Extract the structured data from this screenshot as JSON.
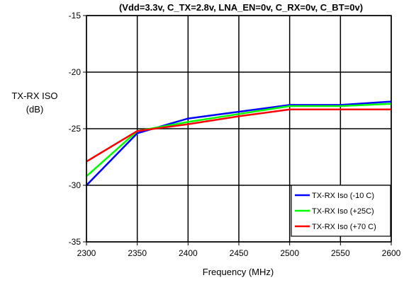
{
  "chart_data": {
    "type": "line",
    "title": "(Vdd=3.3v, C_TX=2.8v, LNA_EN=0v, C_RX=0v, C_BT=0v)",
    "xlabel": "Frequency (MHz)",
    "ylabel": [
      "TX-RX ISO",
      "(dB)"
    ],
    "xlim": [
      2300,
      2600
    ],
    "ylim": [
      -35,
      -15
    ],
    "x_ticks": [
      2300,
      2350,
      2400,
      2450,
      2500,
      2550,
      2600
    ],
    "y_ticks": [
      -15,
      -20,
      -25,
      -30,
      -35
    ],
    "grid": true,
    "legend_position": "bottom-right",
    "x": [
      2300,
      2350,
      2400,
      2450,
      2500,
      2550,
      2600
    ],
    "series": [
      {
        "name": "TX-RX Iso (-10 C)",
        "color": "#0000ff",
        "values": [
          -30.0,
          -25.4,
          -24.1,
          -23.5,
          -22.9,
          -22.9,
          -22.6
        ]
      },
      {
        "name": "TX-RX Iso (+25C)",
        "color": "#00ff00",
        "values": [
          -29.2,
          -25.2,
          -24.4,
          -23.7,
          -23.0,
          -23.0,
          -22.8
        ]
      },
      {
        "name": "TX-RX Iso (+70 C)",
        "color": "#ff0000",
        "values": [
          -27.9,
          -25.2,
          -24.6,
          -23.9,
          -23.3,
          -23.3,
          -23.3
        ]
      }
    ]
  }
}
